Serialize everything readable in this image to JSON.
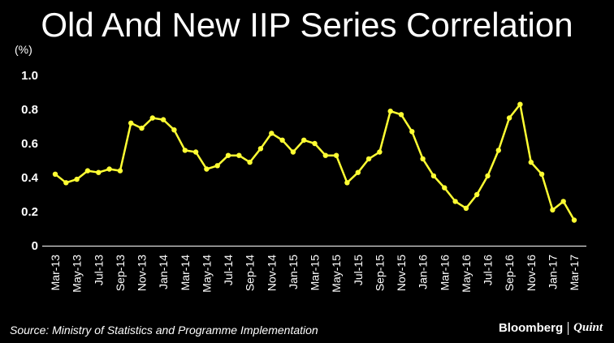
{
  "header": {
    "title": "Old And New IIP Series Correlation"
  },
  "footer": {
    "source": "Source: Ministry of Statistics and Programme Implementation",
    "brand_main": "Bloomberg",
    "brand_sub": "Quint"
  },
  "colors": {
    "background": "#000000",
    "line": "#ffff33",
    "text": "#ffffff"
  },
  "chart_data": {
    "type": "line",
    "title": "Old And New IIP Series Correlation",
    "ylabel": "(%)",
    "xlabel": "",
    "ylim": [
      0,
      1.0
    ],
    "yticks": [
      1.0,
      0.8,
      0.6,
      0.4,
      0.2,
      0
    ],
    "ytick_labels": [
      "1.0",
      "0.8",
      "0.6",
      "0.4",
      "0.2",
      "0"
    ],
    "x": [
      "Mar-13",
      "Apr-13",
      "May-13",
      "Jun-13",
      "Jul-13",
      "Aug-13",
      "Sep-13",
      "Oct-13",
      "Nov-13",
      "Dec-13",
      "Jan-14",
      "Feb-14",
      "Mar-14",
      "Apr-14",
      "May-14",
      "Jun-14",
      "Jul-14",
      "Aug-14",
      "Sep-14",
      "Oct-14",
      "Nov-14",
      "Dec-14",
      "Jan-15",
      "Feb-15",
      "Mar-15",
      "Apr-15",
      "May-15",
      "Jun-15",
      "Jul-15",
      "Aug-15",
      "Sep-15",
      "Oct-15",
      "Nov-15",
      "Dec-15",
      "Jan-16",
      "Feb-16",
      "Mar-16",
      "Apr-16",
      "May-16",
      "Jun-16",
      "Jul-16",
      "Aug-16",
      "Sep-16",
      "Oct-16",
      "Nov-16",
      "Dec-16",
      "Jan-17",
      "Feb-17",
      "Mar-17"
    ],
    "xtick_labels": [
      "Mar-13",
      "May-13",
      "Jul-13",
      "Sep-13",
      "Nov-13",
      "Jan-14",
      "Mar-14",
      "May-14",
      "Jul-14",
      "Sep-14",
      "Nov-14",
      "Jan-15",
      "Mar-15",
      "May-15",
      "Jul-15",
      "Sep-15",
      "Nov-15",
      "Jan-16",
      "Mar-16",
      "May-16",
      "Jul-16",
      "Sep-16",
      "Nov-16",
      "Jan-17",
      "Mar-17"
    ],
    "series": [
      {
        "name": "Correlation",
        "values": [
          0.42,
          0.37,
          0.39,
          0.44,
          0.43,
          0.45,
          0.44,
          0.72,
          0.69,
          0.75,
          0.74,
          0.68,
          0.56,
          0.55,
          0.45,
          0.47,
          0.53,
          0.53,
          0.49,
          0.57,
          0.66,
          0.62,
          0.55,
          0.62,
          0.6,
          0.53,
          0.53,
          0.37,
          0.43,
          0.51,
          0.55,
          0.79,
          0.77,
          0.67,
          0.51,
          0.41,
          0.34,
          0.26,
          0.22,
          0.3,
          0.41,
          0.56,
          0.75,
          0.83,
          0.49,
          0.42,
          0.21,
          0.26,
          0.15
        ]
      }
    ]
  }
}
